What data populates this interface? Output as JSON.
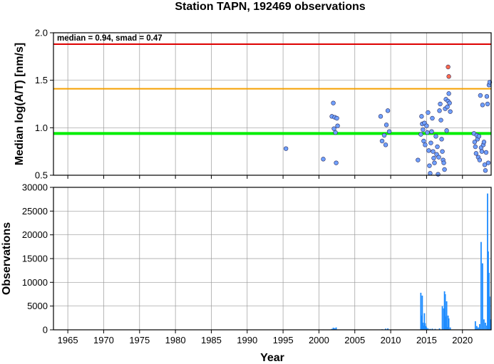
{
  "title": "Station TAPN, 192469 observations",
  "annotation": "median = 0.94, smad = 0.47",
  "chart_data": [
    {
      "type": "scatter",
      "ylabel": "Median log(A/T) [nm/s]",
      "xlim": [
        1963,
        2024
      ],
      "ylim": [
        0.5,
        2.0
      ],
      "yticks": [
        0.5,
        1.0,
        1.5,
        2.0
      ],
      "ytick_labels": [
        "0.5",
        "1.0",
        "1.5",
        "2.0"
      ],
      "grid": true,
      "reference_lines": [
        {
          "y": 1.88,
          "color": "#dd0000"
        },
        {
          "y": 1.41,
          "color": "#f5a000"
        },
        {
          "y": 0.94,
          "color": "#00ee00"
        }
      ],
      "series": [
        {
          "color": "#6fa0ff",
          "points": [
            [
              1995.4,
              0.78
            ],
            [
              2000.6,
              0.67
            ],
            [
              2001.8,
              1.12
            ],
            [
              2002.0,
              1.26
            ],
            [
              2002.1,
              0.99
            ],
            [
              2002.2,
              1.11
            ],
            [
              2002.3,
              0.95
            ],
            [
              2002.4,
              0.63
            ],
            [
              2002.5,
              1.1
            ],
            [
              2002.6,
              1.02
            ],
            [
              2008.6,
              1.12
            ],
            [
              2008.8,
              0.86
            ],
            [
              2009.1,
              0.92
            ],
            [
              2009.3,
              0.82
            ],
            [
              2009.4,
              1.03
            ],
            [
              2009.6,
              1.18
            ],
            [
              2009.8,
              0.96
            ],
            [
              2013.8,
              0.66
            ],
            [
              2014.2,
              0.93
            ],
            [
              2014.3,
              1.12
            ],
            [
              2014.4,
              1.04
            ],
            [
              2014.5,
              0.98
            ],
            [
              2014.6,
              0.86
            ],
            [
              2014.7,
              1.05
            ],
            [
              2014.8,
              0.82
            ],
            [
              2015.0,
              1.02
            ],
            [
              2015.1,
              0.95
            ],
            [
              2015.2,
              1.16
            ],
            [
              2015.3,
              0.76
            ],
            [
              2015.4,
              0.6
            ],
            [
              2015.5,
              0.52
            ],
            [
              2015.6,
              0.84
            ],
            [
              2015.7,
              0.96
            ],
            [
              2015.8,
              1.1
            ],
            [
              2015.9,
              0.75
            ],
            [
              2016.0,
              0.68
            ],
            [
              2016.1,
              0.63
            ],
            [
              2016.3,
              0.91
            ],
            [
              2016.4,
              0.72
            ],
            [
              2016.5,
              0.8
            ],
            [
              2016.6,
              0.51
            ],
            [
              2016.7,
              0.69
            ],
            [
              2016.8,
              1.18
            ],
            [
              2016.9,
              1.25
            ],
            [
              2017.0,
              1.08
            ],
            [
              2017.1,
              0.88
            ],
            [
              2017.2,
              0.75
            ],
            [
              2017.3,
              0.66
            ],
            [
              2017.4,
              0.63
            ],
            [
              2017.5,
              0.56
            ],
            [
              2017.6,
              1.2
            ],
            [
              2017.7,
              1.3
            ],
            [
              2017.8,
              0.97
            ],
            [
              2017.9,
              1.22
            ],
            [
              2018.0,
              1.28
            ],
            [
              2018.1,
              1.36
            ],
            [
              2018.2,
              1.26
            ],
            [
              2018.3,
              1.17
            ],
            [
              2021.6,
              0.94
            ],
            [
              2021.7,
              0.85
            ],
            [
              2021.8,
              0.8
            ],
            [
              2021.9,
              0.73
            ],
            [
              2022.0,
              0.92
            ],
            [
              2022.1,
              0.88
            ],
            [
              2022.2,
              0.69
            ],
            [
              2022.3,
              0.91
            ],
            [
              2022.4,
              0.66
            ],
            [
              2022.5,
              1.34
            ],
            [
              2022.6,
              0.79
            ],
            [
              2022.7,
              0.75
            ],
            [
              2022.8,
              1.24
            ],
            [
              2022.9,
              0.82
            ],
            [
              2023.0,
              0.85
            ],
            [
              2023.1,
              0.61
            ],
            [
              2023.2,
              0.55
            ],
            [
              2023.3,
              0.74
            ],
            [
              2023.4,
              1.33
            ],
            [
              2023.5,
              1.25
            ],
            [
              2023.6,
              0.63
            ],
            [
              2023.7,
              1.45
            ],
            [
              2023.8,
              1.48
            ]
          ]
        },
        {
          "color": "#ff6a4d",
          "points": [
            [
              2018.0,
              1.64
            ],
            [
              2018.1,
              1.54
            ]
          ]
        }
      ]
    },
    {
      "type": "bar",
      "xlabel": "Year",
      "ylabel": "Observations",
      "xlim": [
        1963,
        2024
      ],
      "ylim": [
        0,
        30000
      ],
      "yticks": [
        0,
        5000,
        10000,
        15000,
        20000,
        25000,
        30000
      ],
      "ytick_labels": [
        "0",
        "5000",
        "10000",
        "15000",
        "20000",
        "25000",
        "30000"
      ],
      "xticks": [
        1965,
        1970,
        1975,
        1980,
        1985,
        1990,
        1995,
        2000,
        2005,
        2010,
        2015,
        2020
      ],
      "xtick_labels": [
        "1965",
        "1970",
        "1975",
        "1980",
        "1985",
        "1990",
        "1995",
        "2000",
        "2005",
        "2010",
        "2015",
        "2020"
      ],
      "grid": true,
      "color": "#1e8cff",
      "x": [
        1995.4,
        2000.6,
        2001.8,
        2002.0,
        2002.2,
        2002.4,
        2008.8,
        2009.3,
        2009.6,
        2014.2,
        2014.3,
        2014.4,
        2014.5,
        2014.6,
        2014.7,
        2014.8,
        2014.9,
        2015.0,
        2015.2,
        2015.5,
        2015.8,
        2016.2,
        2016.8,
        2017.2,
        2017.4,
        2017.5,
        2017.6,
        2017.7,
        2017.8,
        2017.9,
        2018.0,
        2018.1,
        2018.3,
        2021.8,
        2022.0,
        2022.2,
        2022.4,
        2022.6,
        2022.8,
        2023.0,
        2023.2,
        2023.4,
        2023.5,
        2023.6,
        2023.7,
        2023.8,
        2023.9
      ],
      "values": [
        60,
        80,
        200,
        450,
        350,
        500,
        120,
        250,
        300,
        7800,
        3000,
        7200,
        1500,
        900,
        3500,
        1400,
        800,
        500,
        300,
        200,
        250,
        200,
        300,
        5000,
        4500,
        8100,
        7500,
        2800,
        6000,
        600,
        3000,
        2400,
        500,
        1800,
        800,
        500,
        1200,
        18500,
        14000,
        2200,
        1500,
        900,
        28700,
        16500,
        12000,
        7000,
        2200
      ]
    }
  ]
}
